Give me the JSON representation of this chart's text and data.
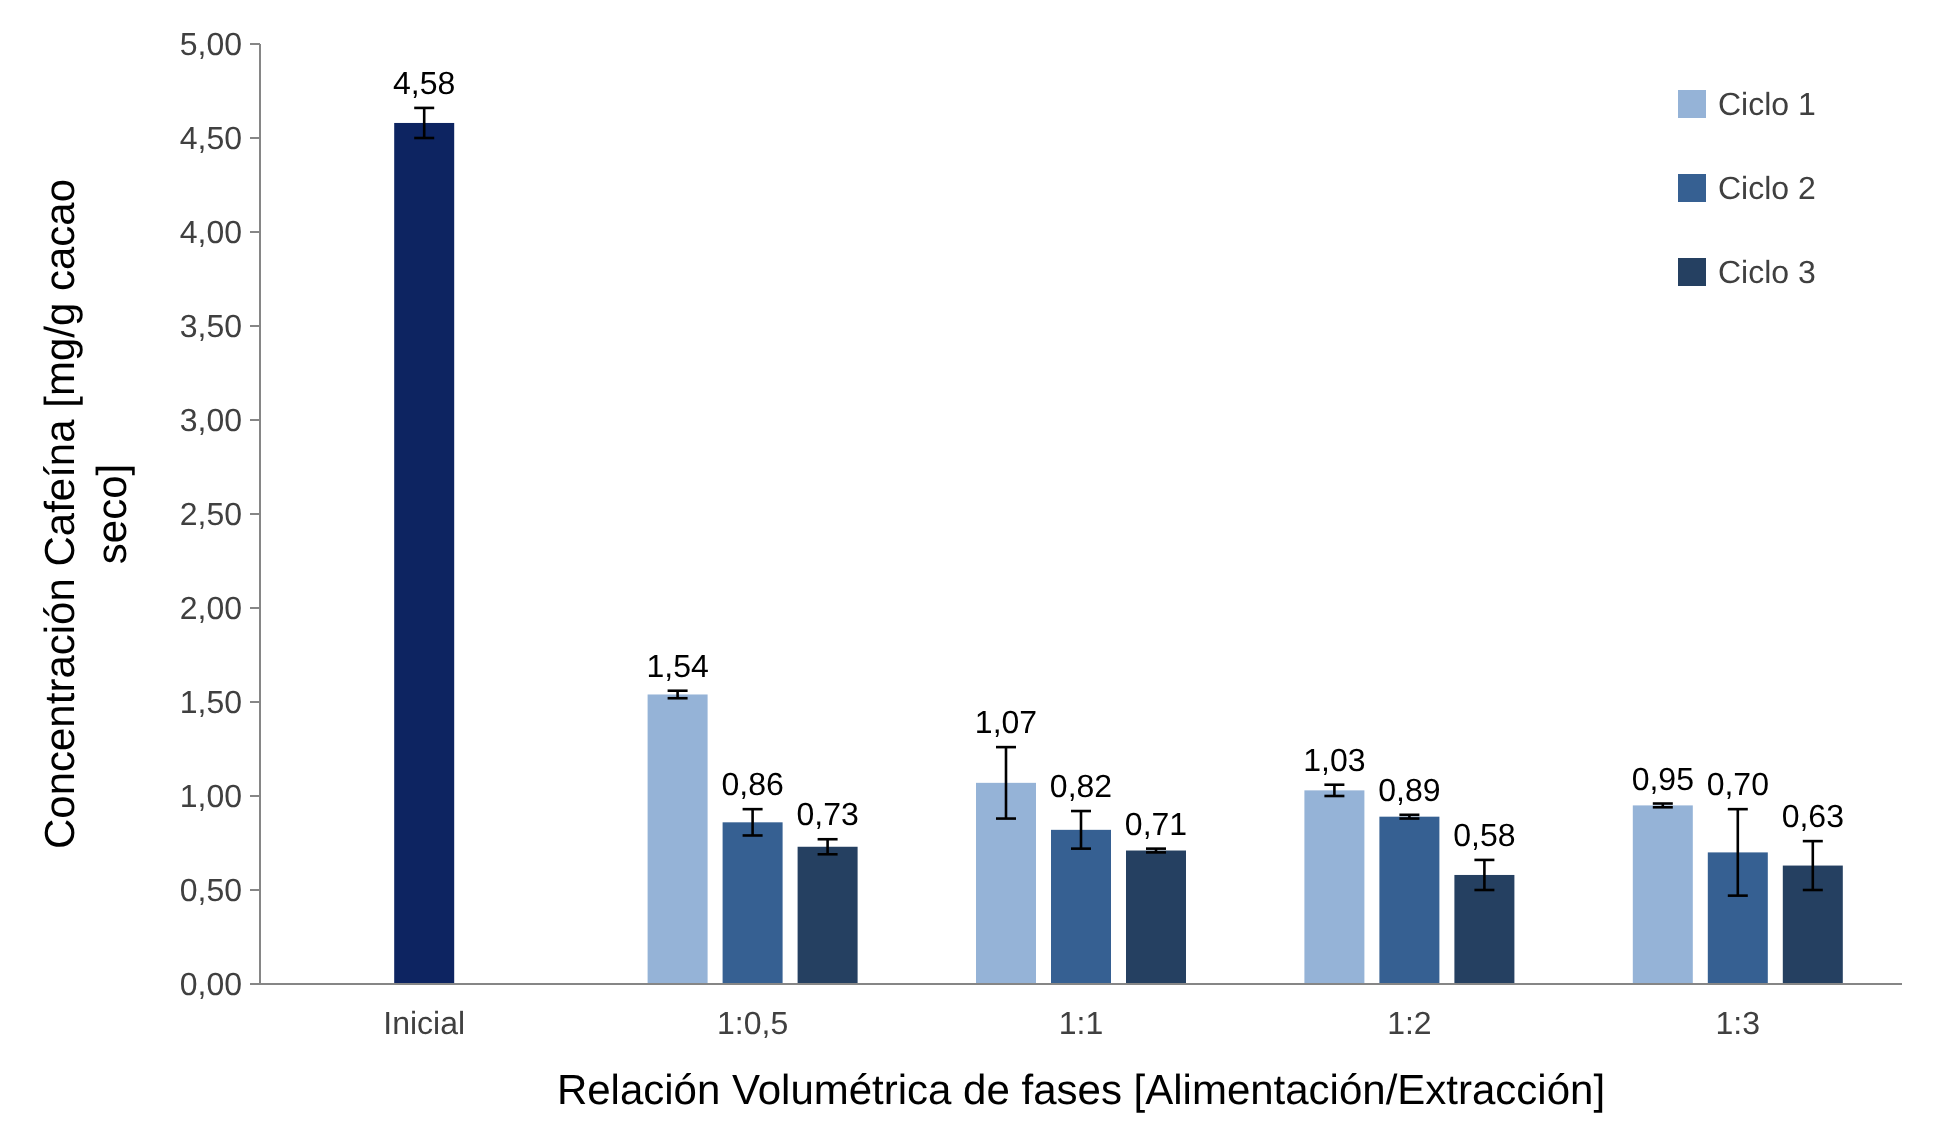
{
  "chart_data": {
    "type": "bar",
    "xlabel": "Relación Volumétrica de fases [Alimentación/Extracción]",
    "ylabel": "Concentración Cafeína [mg/g cacao seco]",
    "categories": [
      "Inicial",
      "1:0,5",
      "1:1",
      "1:2",
      "1:3"
    ],
    "series": [
      {
        "color": "#0d2461",
        "values": [
          4.58,
          null,
          null,
          null,
          null
        ],
        "errors": [
          0.08,
          null,
          null,
          null,
          null
        ],
        "value_labels": [
          "4,58",
          null,
          null,
          null,
          null
        ]
      },
      {
        "name": "Ciclo 1",
        "color": "#95b3d7",
        "values": [
          null,
          1.54,
          1.07,
          1.03,
          0.95
        ],
        "errors": [
          null,
          0.02,
          0.19,
          0.03,
          0.01
        ],
        "value_labels": [
          null,
          "1,54",
          "1,07",
          "1,03",
          "0,95"
        ]
      },
      {
        "name": "Ciclo 2",
        "color": "#366092",
        "values": [
          null,
          0.86,
          0.82,
          0.89,
          0.7
        ],
        "errors": [
          null,
          0.07,
          0.1,
          0.01,
          0.23
        ],
        "value_labels": [
          null,
          "0,86",
          "0,82",
          "0,89",
          "0,70"
        ]
      },
      {
        "name": "Ciclo 3",
        "color": "#254061",
        "values": [
          null,
          0.73,
          0.71,
          0.58,
          0.63
        ],
        "errors": [
          null,
          0.04,
          0.01,
          0.08,
          0.13
        ],
        "value_labels": [
          null,
          "0,73",
          "0,71",
          "0,58",
          "0,63"
        ]
      }
    ],
    "ylim": [
      0,
      5
    ],
    "yticks": [
      {
        "value": 0,
        "label": "0,00"
      },
      {
        "value": 0.5,
        "label": "0,50"
      },
      {
        "value": 1,
        "label": "1,00"
      },
      {
        "value": 1.5,
        "label": "1,50"
      },
      {
        "value": 2,
        "label": "2,00"
      },
      {
        "value": 2.5,
        "label": "2,50"
      },
      {
        "value": 3,
        "label": "3,00"
      },
      {
        "value": 3.5,
        "label": "3,50"
      },
      {
        "value": 4,
        "label": "4,00"
      },
      {
        "value": 4.5,
        "label": "4,50"
      },
      {
        "value": 5,
        "label": "5,00"
      }
    ],
    "legend": "top right",
    "grid": false
  }
}
